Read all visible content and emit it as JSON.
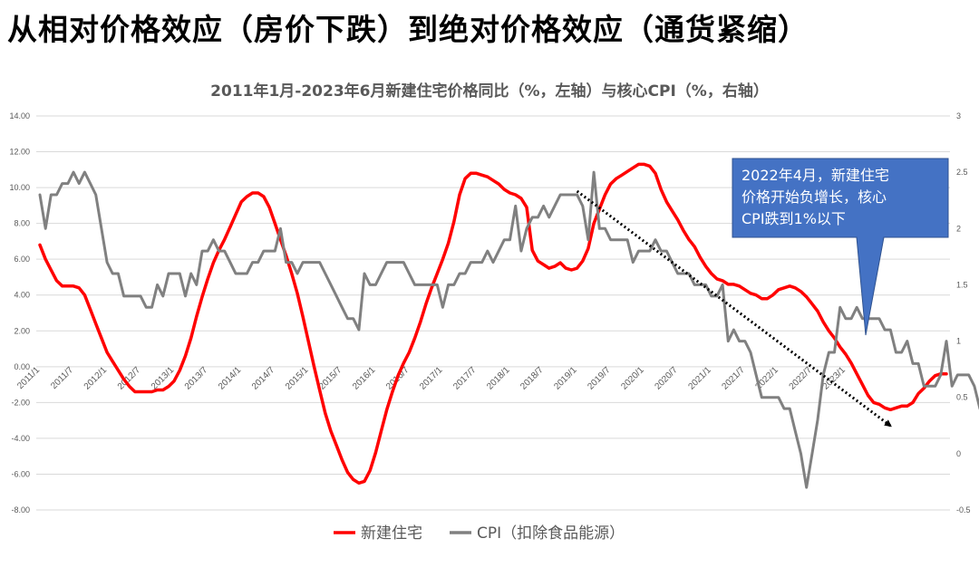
{
  "headline": "从相对价格效应（房价下跌）到绝对价格效应（通货紧缩）",
  "chart_data": {
    "type": "line",
    "title": "2011年1月-2023年6月新建住宅价格同比（%，左轴）与核心CPI（%，右轴）",
    "left_axis": {
      "ylim": [
        -8,
        14
      ],
      "ticks": [
        "14.00",
        "12.00",
        "10.00",
        "8.00",
        "6.00",
        "4.00",
        "2.00",
        "0.00",
        "-2.00",
        "-4.00",
        "-6.00",
        "-8.00"
      ],
      "red_ticks": [
        "-2.00",
        "-4.00",
        "-6.00",
        "-8.00"
      ]
    },
    "right_axis": {
      "ylim": [
        -0.5,
        3
      ],
      "ticks": [
        "3",
        "2.5",
        "2",
        "1.5",
        "1",
        "0.5",
        "0",
        "-0.5"
      ]
    },
    "x_tick_labels": [
      "2011/1",
      "2011/7",
      "2012/1",
      "2012/7",
      "2013/1",
      "2013/7",
      "2014/1",
      "2014/7",
      "2015/1",
      "2015/7",
      "2016/1",
      "2016/7",
      "2017/1",
      "2017/7",
      "2018/1",
      "2018/7",
      "2019/1",
      "2019/7",
      "2020/1",
      "2020/7",
      "2021/1",
      "2021/7",
      "2022/1",
      "2022/7",
      "2023/1"
    ],
    "series": [
      {
        "name": "新建住宅",
        "axis": "left",
        "color": "#ff0000",
        "values": [
          6.8,
          6.0,
          5.4,
          4.8,
          4.5,
          4.5,
          4.5,
          4.4,
          4.0,
          3.2,
          2.4,
          1.6,
          0.8,
          0.3,
          -0.2,
          -0.7,
          -1.1,
          -1.4,
          -1.4,
          -1.4,
          -1.4,
          -1.3,
          -1.3,
          -1.1,
          -0.8,
          -0.2,
          0.6,
          1.6,
          2.8,
          3.9,
          4.9,
          5.8,
          6.5,
          7.1,
          7.8,
          8.5,
          9.2,
          9.5,
          9.7,
          9.7,
          9.5,
          8.9,
          8.0,
          7.1,
          6.2,
          5.2,
          4.1,
          2.8,
          1.4,
          0.0,
          -1.3,
          -2.6,
          -3.6,
          -4.4,
          -5.2,
          -5.9,
          -6.3,
          -6.5,
          -6.4,
          -5.8,
          -4.8,
          -3.6,
          -2.4,
          -1.4,
          -0.5,
          0.2,
          0.8,
          1.6,
          2.5,
          3.5,
          4.4,
          5.2,
          6.0,
          6.9,
          8.1,
          9.6,
          10.5,
          10.8,
          10.8,
          10.7,
          10.6,
          10.4,
          10.2,
          9.9,
          9.7,
          9.6,
          9.4,
          8.9,
          6.5,
          5.9,
          5.7,
          5.5,
          5.6,
          5.8,
          5.5,
          5.4,
          5.5,
          5.9,
          6.6,
          8.0,
          8.8,
          9.6,
          10.2,
          10.5,
          10.7,
          10.9,
          11.1,
          11.3,
          11.3,
          11.2,
          10.8,
          9.9,
          9.2,
          8.7,
          8.2,
          7.6,
          7.1,
          6.7,
          6.1,
          5.6,
          5.2,
          4.9,
          4.8,
          4.6,
          4.6,
          4.5,
          4.3,
          4.1,
          4.0,
          3.8,
          3.8,
          4.0,
          4.3,
          4.4,
          4.5,
          4.4,
          4.2,
          3.9,
          3.5,
          3.1,
          2.5,
          2.0,
          1.6,
          1.1,
          0.7,
          0.2,
          -0.4,
          -1.0,
          -1.6,
          -2.0,
          -2.1,
          -2.3,
          -2.4,
          -2.3,
          -2.2,
          -2.2,
          -2.0,
          -1.5,
          -1.2,
          -0.8,
          -0.5,
          -0.4,
          -0.4
        ]
      },
      {
        "name": "CPI（扣除食品能源）",
        "axis": "right",
        "color": "#808080",
        "values": [
          2.3,
          2.0,
          2.3,
          2.3,
          2.4,
          2.4,
          2.5,
          2.4,
          2.5,
          2.4,
          2.3,
          2.0,
          1.7,
          1.6,
          1.6,
          1.4,
          1.4,
          1.4,
          1.4,
          1.3,
          1.3,
          1.5,
          1.4,
          1.6,
          1.6,
          1.6,
          1.4,
          1.6,
          1.5,
          1.8,
          1.8,
          1.9,
          1.8,
          1.8,
          1.7,
          1.6,
          1.6,
          1.6,
          1.7,
          1.7,
          1.8,
          1.8,
          1.8,
          2.0,
          1.7,
          1.7,
          1.6,
          1.7,
          1.7,
          1.7,
          1.7,
          1.6,
          1.5,
          1.4,
          1.3,
          1.2,
          1.2,
          1.1,
          1.6,
          1.5,
          1.5,
          1.6,
          1.7,
          1.7,
          1.7,
          1.7,
          1.6,
          1.5,
          1.5,
          1.5,
          1.5,
          1.5,
          1.3,
          1.5,
          1.5,
          1.6,
          1.6,
          1.7,
          1.7,
          1.7,
          1.8,
          1.7,
          1.8,
          1.9,
          1.9,
          2.2,
          1.8,
          2.0,
          2.1,
          2.1,
          2.2,
          2.1,
          2.2,
          2.3,
          2.3,
          2.3,
          2.3,
          2.2,
          1.9,
          2.5,
          2.0,
          2.0,
          1.9,
          1.9,
          1.9,
          1.9,
          1.7,
          1.8,
          1.8,
          1.8,
          1.9,
          1.8,
          1.8,
          1.7,
          1.6,
          1.6,
          1.6,
          1.5,
          1.5,
          1.5,
          1.4,
          1.4,
          1.5,
          1.0,
          1.1,
          1.0,
          1.0,
          0.9,
          0.7,
          0.5,
          0.5,
          0.5,
          0.5,
          0.4,
          0.4,
          0.2,
          0.0,
          -0.3,
          0.0,
          0.3,
          0.7,
          0.9,
          0.9,
          1.3,
          1.2,
          1.2,
          1.3,
          1.2,
          1.2,
          1.2,
          1.2,
          1.1,
          1.1,
          0.9,
          0.9,
          1.0,
          0.8,
          0.8,
          0.6,
          0.6,
          0.6,
          0.7,
          1.0,
          0.6,
          0.7,
          0.7,
          0.7,
          0.6,
          0.4
        ]
      }
    ],
    "annotation": {
      "text_lines": [
        "2022年4月，新建住宅",
        "价格开始负增长，核心",
        "CPI跌到1%以下"
      ],
      "bg_color": "#4472c4"
    },
    "trend_arrow": {
      "style": "dotted",
      "color": "#000000",
      "from_index": 96,
      "to_index": 152,
      "from_value": 9.8,
      "to_value": -3.3
    },
    "legend": {
      "position": "bottom-center"
    }
  }
}
